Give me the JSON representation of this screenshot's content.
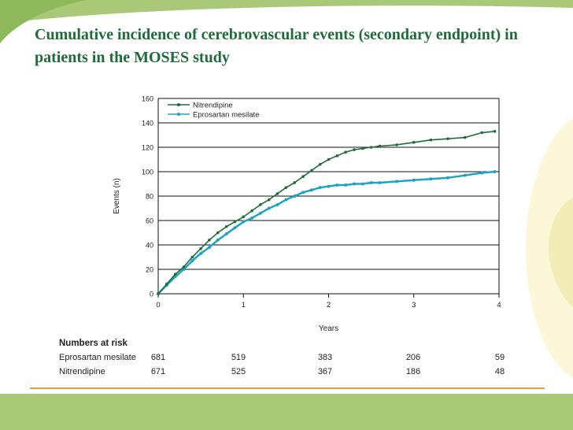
{
  "slide": {
    "title": "Cumulative incidence of cerebrovascular events (secondary endpoint) in patients in the MOSES study"
  },
  "colors": {
    "nitrendipine": "#1e6b3c",
    "eprosartan": "#1ea3c4",
    "title": "#1f6b3a"
  },
  "chart_data": {
    "type": "line",
    "title": "",
    "xlabel": "Years",
    "ylabel": "Events (n)",
    "xlim": [
      0,
      4
    ],
    "ylim": [
      0,
      160
    ],
    "x_ticks": [
      "0",
      "1",
      "2",
      "3",
      "4"
    ],
    "y_ticks": [
      "0",
      "20",
      "40",
      "60",
      "80",
      "100",
      "120",
      "140",
      "160"
    ],
    "grid": true,
    "legend_position": "top-left",
    "series": [
      {
        "name": "Nitrendipine",
        "color": "#1e6b3c",
        "x": [
          0,
          0.1,
          0.2,
          0.3,
          0.4,
          0.5,
          0.6,
          0.7,
          0.8,
          0.9,
          1.0,
          1.1,
          1.2,
          1.3,
          1.4,
          1.5,
          1.6,
          1.7,
          1.8,
          1.9,
          2.0,
          2.1,
          2.2,
          2.3,
          2.4,
          2.5,
          2.6,
          2.8,
          3.0,
          3.2,
          3.4,
          3.6,
          3.8,
          3.95
        ],
        "values": [
          0,
          8,
          16,
          22,
          30,
          37,
          44,
          50,
          55,
          59,
          63,
          68,
          73,
          77,
          82,
          87,
          91,
          96,
          101,
          106,
          110,
          113,
          116,
          118,
          119,
          120,
          121,
          122,
          124,
          126,
          127,
          128,
          132,
          133
        ]
      },
      {
        "name": "Eprosartan mesilate",
        "color": "#1ea3c4",
        "x": [
          0,
          0.1,
          0.2,
          0.3,
          0.4,
          0.5,
          0.6,
          0.7,
          0.8,
          0.9,
          1.0,
          1.1,
          1.2,
          1.3,
          1.4,
          1.5,
          1.6,
          1.7,
          1.8,
          1.9,
          2.0,
          2.1,
          2.2,
          2.3,
          2.4,
          2.5,
          2.6,
          2.8,
          3.0,
          3.2,
          3.4,
          3.6,
          3.8,
          3.95
        ],
        "values": [
          0,
          7,
          14,
          20,
          27,
          33,
          38,
          44,
          49,
          54,
          59,
          62,
          66,
          70,
          73,
          77,
          80,
          83,
          85,
          87,
          88,
          89,
          89,
          90,
          90,
          91,
          91,
          92,
          93,
          94,
          95,
          97,
          99,
          100
        ]
      }
    ]
  },
  "risk_table": {
    "title": "Numbers at risk",
    "rows": [
      {
        "label": "Eprosartan mesilate",
        "values": [
          "681",
          "519",
          "383",
          "206",
          "59"
        ]
      },
      {
        "label": "Nitrendipine",
        "values": [
          "671",
          "525",
          "367",
          "186",
          "48"
        ]
      }
    ]
  }
}
